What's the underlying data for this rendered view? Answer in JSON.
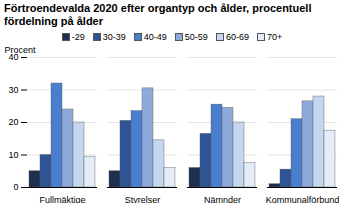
{
  "chart_data": {
    "type": "bar",
    "title": "Förtroendevalda 2020 efter organtyp och ålder, procentuell fördelning på ålder",
    "y_label": "Procent",
    "categories": [
      "Fullmäktige",
      "Styrelser",
      "Nämnder",
      "Kommunalförbund"
    ],
    "series": [
      {
        "name": "-29",
        "color": "#1f2d4e",
        "values": [
          5,
          5,
          6,
          1
        ]
      },
      {
        "name": "30-39",
        "color": "#2f5597",
        "values": [
          10,
          20.5,
          16.5,
          5.5
        ]
      },
      {
        "name": "40-49",
        "color": "#4a7fd0",
        "values": [
          32,
          23.5,
          25.5,
          21
        ]
      },
      {
        "name": "50-59",
        "color": "#8eaadb",
        "values": [
          24,
          30.5,
          24.5,
          26.5
        ]
      },
      {
        "name": "60-69",
        "color": "#c5d6ee",
        "values": [
          20,
          14.5,
          20,
          28
        ]
      },
      {
        "name": "70+",
        "color": "#e4ecf7",
        "values": [
          9.5,
          6,
          7.5,
          17.5
        ]
      }
    ],
    "ylim": [
      0,
      40
    ],
    "yticks": [
      0,
      10,
      20,
      30,
      40
    ],
    "grid": true,
    "legend": "top"
  }
}
